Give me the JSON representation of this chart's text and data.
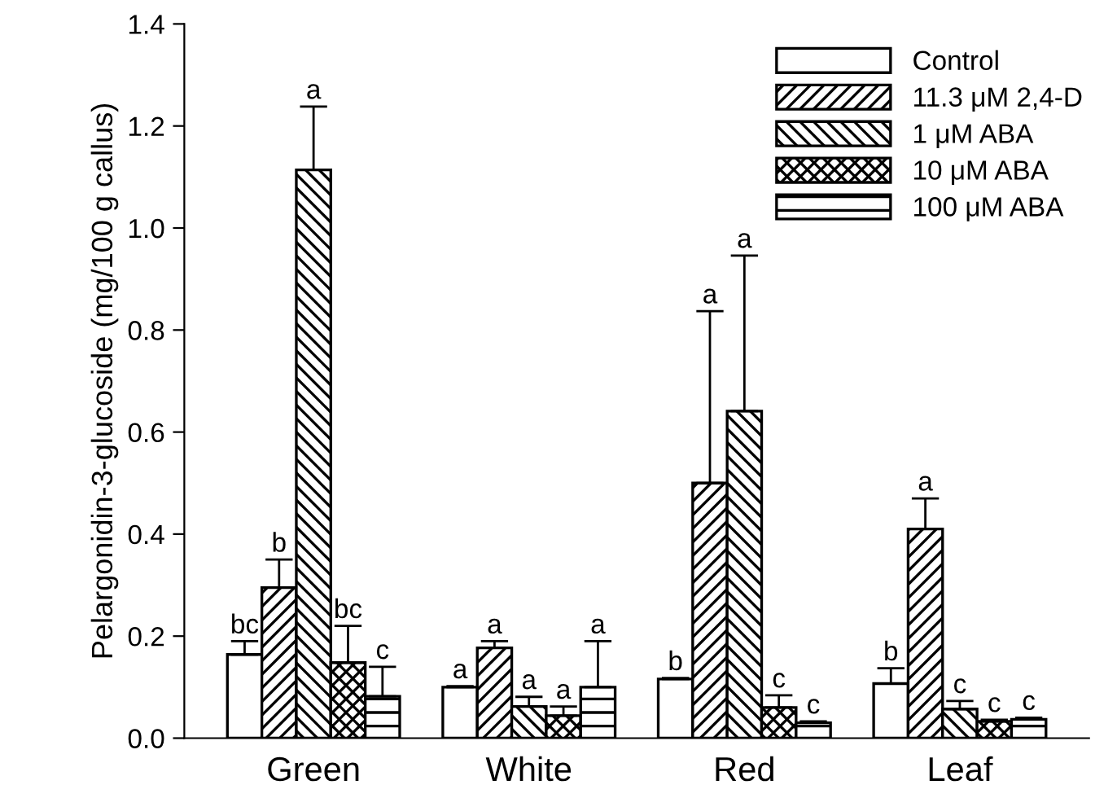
{
  "chart_data": {
    "type": "bar",
    "ylabel": "Pelargonidin-3-glucoside (mg/100 g callus)",
    "categories": [
      "Green",
      "White",
      "Red",
      "Leaf"
    ],
    "ylim": [
      0,
      1.4
    ],
    "yticks": [
      {
        "value": 0,
        "label": "0.0"
      },
      0.2,
      0.4,
      0.6,
      0.8,
      {
        "value": 1,
        "label": "1.0"
      },
      1.2,
      1.4
    ],
    "legend": "top right",
    "grid": false,
    "series": [
      {
        "name": "Control",
        "color": "#ffffff",
        "values": [
          0.164,
          0.1,
          0.116,
          0.107
        ],
        "errors": [
          [
            0.164,
            0.19
          ],
          [
            0.1,
            0.102
          ],
          [
            0.116,
            0.118
          ],
          [
            0.107,
            0.137
          ]
        ]
      },
      {
        "name": "11.3 μM 2,4-D",
        "values": [
          0.295,
          0.177,
          0.5,
          0.41
        ],
        "errors": [
          [
            0.295,
            0.35
          ],
          [
            0.177,
            0.19
          ],
          [
            0.5,
            0.837
          ],
          [
            0.41,
            0.47
          ]
        ]
      },
      {
        "name": "1 μM ABA",
        "values": [
          1.114,
          0.062,
          0.641,
          0.057
        ],
        "errors": [
          [
            1.114,
            1.238
          ],
          [
            0.062,
            0.081
          ],
          [
            0.641,
            0.946
          ],
          [
            0.057,
            0.073
          ]
        ]
      },
      {
        "name": "10 μM ABA",
        "values": [
          0.148,
          0.044,
          0.06,
          0.033
        ],
        "errors": [
          [
            0.148,
            0.22
          ],
          [
            0.044,
            0.062
          ],
          [
            0.06,
            0.084
          ],
          [
            0.033,
            0.036
          ]
        ]
      },
      {
        "name": "100 μM ABA",
        "values": [
          0.082,
          0.1,
          0.03,
          0.037
        ],
        "errors": [
          [
            0.082,
            0.14
          ],
          [
            0.1,
            0.19
          ],
          [
            0.03,
            0.033
          ],
          [
            0.037,
            0.04
          ]
        ]
      }
    ],
    "annotations": [
      "bc",
      "b",
      "a",
      "bc",
      "c",
      "a",
      "a",
      "a",
      "a",
      "a",
      "b",
      "a",
      "a",
      "c",
      "c",
      "b",
      "a",
      "c",
      "c",
      "c"
    ]
  }
}
